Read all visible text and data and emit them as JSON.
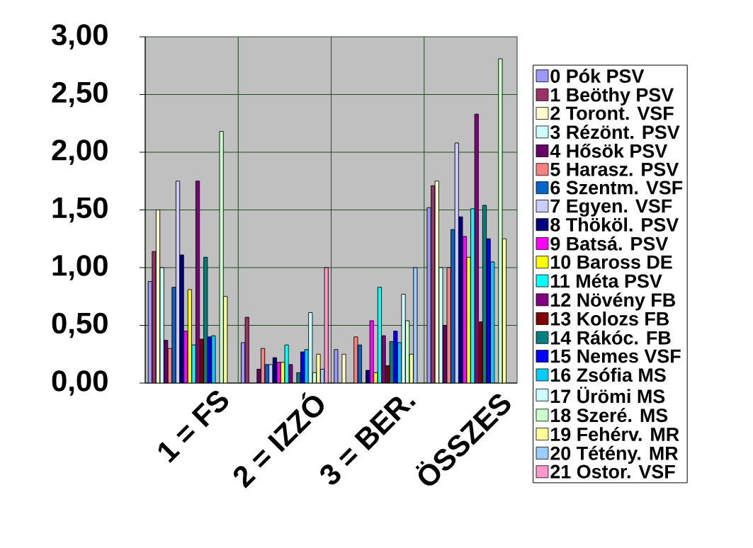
{
  "chart_data": {
    "type": "bar",
    "categories": [
      "1 = FS",
      "2 = IZZÓ",
      "3 = BER.",
      "ÖSSZES"
    ],
    "ylim": [
      0,
      3
    ],
    "yticks": [
      {
        "value": 0,
        "label": "0,00"
      },
      {
        "value": 0.5,
        "label": "0,50"
      },
      {
        "value": 1,
        "label": "1,00"
      },
      {
        "value": 1.5,
        "label": "1,50"
      },
      {
        "value": 2,
        "label": "2,00"
      },
      {
        "value": 2.5,
        "label": "2,50"
      },
      {
        "value": 3,
        "label": "3,00"
      }
    ],
    "grid": true,
    "legend": "right",
    "series": [
      {
        "name": "0 Pók PSV",
        "color": "#9999ff",
        "values": [
          0.88,
          0.35,
          0.29,
          1.52
        ]
      },
      {
        "name": "1 Beöthy PSV",
        "color": "#993366",
        "values": [
          1.14,
          0.57,
          null,
          1.71
        ]
      },
      {
        "name": "2 Toront. VSF",
        "color": "#ffffcc",
        "values": [
          1.5,
          null,
          0.25,
          1.75
        ]
      },
      {
        "name": "3 Rézönt. PSV",
        "color": "#ccffff",
        "values": [
          1.0,
          null,
          null,
          1.0
        ]
      },
      {
        "name": "4 Hősök PSV",
        "color": "#660066",
        "values": [
          0.37,
          0.12,
          null,
          0.5
        ]
      },
      {
        "name": "5 Harasz. PSV",
        "color": "#ff8080",
        "values": [
          0.3,
          0.3,
          0.4,
          1.0
        ]
      },
      {
        "name": "6 Szentm. VSF",
        "color": "#0066cc",
        "values": [
          0.83,
          0.16,
          0.33,
          1.33
        ]
      },
      {
        "name": "7 Egyen. VSF",
        "color": "#ccccff",
        "values": [
          1.75,
          0.16,
          null,
          2.08
        ]
      },
      {
        "name": "8 Thököl. PSV",
        "color": "#000080",
        "values": [
          1.11,
          0.22,
          0.11,
          1.44
        ]
      },
      {
        "name": "9 Batsá. PSV",
        "color": "#ff00ff",
        "values": [
          0.45,
          0.18,
          0.54,
          1.27
        ]
      },
      {
        "name": "10 Baross DE",
        "color": "#ffff00",
        "values": [
          0.81,
          0.18,
          0.09,
          1.09
        ]
      },
      {
        "name": "11 Méta PSV",
        "color": "#00ffff",
        "values": [
          0.33,
          0.33,
          0.83,
          1.51
        ]
      },
      {
        "name": "12 Növény FB",
        "color": "#800080",
        "values": [
          1.75,
          0.16,
          0.41,
          2.33
        ]
      },
      {
        "name": "13 Kolozs FB",
        "color": "#800000",
        "values": [
          0.38,
          null,
          0.15,
          0.53
        ]
      },
      {
        "name": "14 Rákóc. FB",
        "color": "#008080",
        "values": [
          1.09,
          0.09,
          0.36,
          1.54
        ]
      },
      {
        "name": "15 Nemes VSF",
        "color": "#0000ff",
        "values": [
          0.4,
          0.27,
          0.45,
          1.25
        ]
      },
      {
        "name": "16 Zsófia MS",
        "color": "#00ccff",
        "values": [
          0.41,
          0.29,
          0.35,
          1.05
        ]
      },
      {
        "name": "17 Ürömi MS",
        "color": "#ccffff",
        "values": [
          null,
          0.61,
          0.77,
          null
        ]
      },
      {
        "name": "18 Szeré. MS",
        "color": "#ccffcc",
        "values": [
          2.18,
          0.09,
          0.54,
          2.81
        ]
      },
      {
        "name": "19 Fehérv. MR",
        "color": "#ffff99",
        "values": [
          0.75,
          0.25,
          0.25,
          1.25
        ]
      },
      {
        "name": "20 Tétény. MR",
        "color": "#99ccff",
        "values": [
          null,
          0.12,
          1.0,
          null
        ]
      },
      {
        "name": "21 Ostor. VSF",
        "color": "#ff99cc",
        "values": [
          null,
          1.0,
          null,
          null
        ]
      }
    ]
  }
}
